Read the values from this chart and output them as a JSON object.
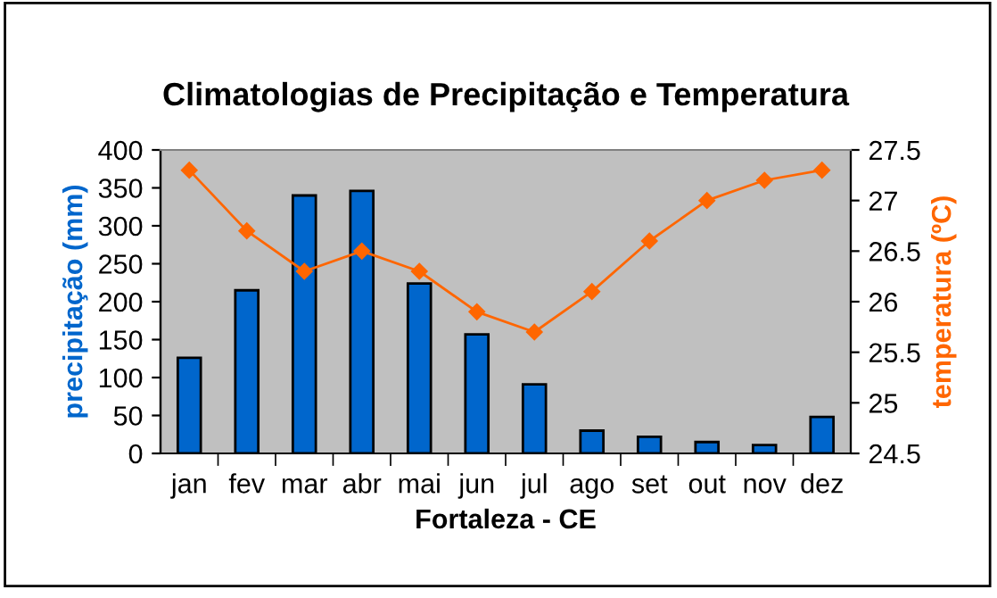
{
  "chart_data": {
    "type": "bar",
    "title": "Climatologias de Precipitação e Temperatura",
    "xlabel": "Fortaleza - CE",
    "ylabel": "precipitação (mm)",
    "y2label": "temperatura (ºC)",
    "categories": [
      "jan",
      "fev",
      "mar",
      "abr",
      "mai",
      "jun",
      "jul",
      "ago",
      "set",
      "out",
      "nov",
      "dez"
    ],
    "series": [
      {
        "color": "#0066cc",
        "values": [
          126,
          215,
          340,
          346,
          224,
          157,
          91,
          30,
          22,
          15,
          11,
          48
        ]
      },
      {
        "type": "line",
        "axis": "y2",
        "color": "#ff6600",
        "marker": "diamond",
        "values": [
          27.3,
          26.7,
          26.3,
          26.5,
          26.3,
          25.9,
          25.7,
          26.1,
          26.6,
          27.0,
          27.2,
          27.3
        ]
      }
    ],
    "ylim": [
      0,
      400
    ],
    "yticks": [
      0,
      50,
      100,
      150,
      200,
      250,
      300,
      350,
      400
    ],
    "y2lim": [
      24.5,
      27.5
    ],
    "y2ticks": [
      {
        "value": 24.5,
        "label": "24.5"
      },
      {
        "value": 25,
        "label": "25"
      },
      {
        "value": 25.5,
        "label": "25.5"
      },
      {
        "value": 26,
        "label": "26"
      },
      {
        "value": 26.5,
        "label": "26.5"
      },
      {
        "value": 27,
        "label": "27"
      },
      {
        "value": 27.5,
        "label": "27.5"
      }
    ],
    "grid": false,
    "legend": false
  }
}
